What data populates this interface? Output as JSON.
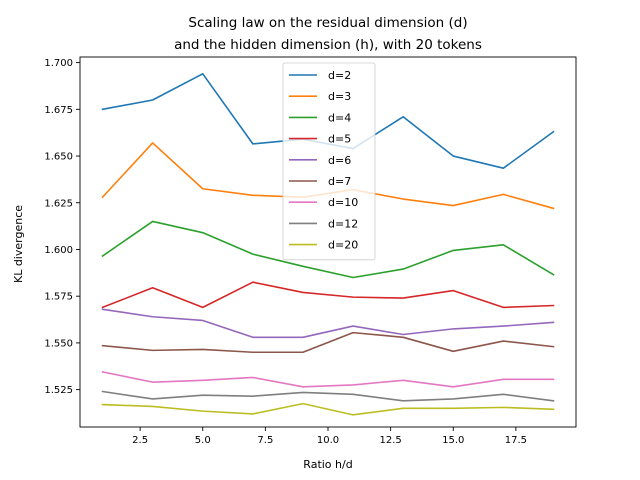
{
  "chart_data": {
    "type": "line",
    "title_line1": "Scaling law on the residual dimension (d)",
    "title_line2": "and the hidden dimension (h), with 20 tokens",
    "xlabel": "Ratio h/d",
    "ylabel": "KL divergence",
    "xlim": [
      0.1,
      19.9
    ],
    "ylim": [
      1.505,
      1.703
    ],
    "xticks": [
      2.5,
      5.0,
      7.5,
      10.0,
      12.5,
      15.0,
      17.5
    ],
    "xtick_labels": [
      "2.5",
      "5.0",
      "7.5",
      "10.0",
      "12.5",
      "15.0",
      "17.5"
    ],
    "yticks": [
      1.525,
      1.55,
      1.575,
      1.6,
      1.625,
      1.65,
      1.675,
      1.7
    ],
    "ytick_labels": [
      "1.525",
      "1.550",
      "1.575",
      "1.600",
      "1.625",
      "1.650",
      "1.675",
      "1.700"
    ],
    "grid": false,
    "legend_position": "top-center",
    "x": [
      1,
      3,
      5,
      7,
      9,
      11,
      13,
      15,
      17,
      19
    ],
    "series": [
      {
        "name": "d=2",
        "color": "#1f77b4",
        "values": [
          1.675,
          1.68,
          1.694,
          1.6565,
          1.659,
          1.654,
          1.671,
          1.65,
          1.6435,
          1.663
        ]
      },
      {
        "name": "d=3",
        "color": "#ff7f0e",
        "values": [
          1.628,
          1.657,
          1.6325,
          1.629,
          1.628,
          1.632,
          1.627,
          1.6235,
          1.6295,
          1.622
        ]
      },
      {
        "name": "d=4",
        "color": "#2ca02c",
        "values": [
          1.5965,
          1.615,
          1.609,
          1.5975,
          1.591,
          1.585,
          1.5895,
          1.5995,
          1.6025,
          1.5865
        ]
      },
      {
        "name": "d=5",
        "color": "#d62728",
        "values": [
          1.569,
          1.5795,
          1.569,
          1.5825,
          1.577,
          1.5745,
          1.574,
          1.578,
          1.569,
          1.57
        ]
      },
      {
        "name": "d=6",
        "color": "#9467bd",
        "values": [
          1.568,
          1.564,
          1.562,
          1.553,
          1.553,
          1.559,
          1.5545,
          1.5575,
          1.559,
          1.561
        ]
      },
      {
        "name": "d=7",
        "color": "#8c564b",
        "values": [
          1.5485,
          1.546,
          1.5465,
          1.545,
          1.545,
          1.5555,
          1.553,
          1.5455,
          1.551,
          1.548
        ]
      },
      {
        "name": "d=10",
        "color": "#e377c2",
        "values": [
          1.5345,
          1.529,
          1.53,
          1.5315,
          1.5265,
          1.5275,
          1.53,
          1.5265,
          1.5305,
          1.5305
        ]
      },
      {
        "name": "d=12",
        "color": "#7f7f7f",
        "values": [
          1.524,
          1.52,
          1.522,
          1.5215,
          1.5235,
          1.5225,
          1.519,
          1.52,
          1.5225,
          1.519
        ]
      },
      {
        "name": "d=20",
        "color": "#bcbd22",
        "values": [
          1.517,
          1.516,
          1.5135,
          1.512,
          1.5175,
          1.5115,
          1.515,
          1.515,
          1.5155,
          1.5145
        ]
      }
    ]
  }
}
